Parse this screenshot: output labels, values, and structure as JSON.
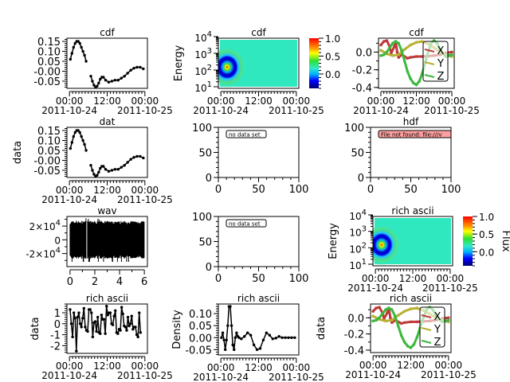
{
  "chart_data": [
    {
      "type": "line",
      "title": "cdf",
      "ylabel": "",
      "xaxis": "time",
      "xticks": [
        {
          "t": "00:00",
          "d": "2011-10-24",
          "v": 0
        },
        {
          "t": "12:00",
          "d": "",
          "v": 12
        },
        {
          "t": "00:00",
          "d": "2011-10-25",
          "v": 24
        }
      ],
      "yticks": [
        0.15,
        0.1,
        0.05,
        -0.0,
        -0.05
      ],
      "ytick_labels": [
        "0.15",
        "0.10",
        "0.05",
        "-0.00",
        "-0.05"
      ],
      "ylim": [
        -0.086,
        0.166
      ],
      "series": [
        {
          "color": "#000000",
          "x": [
            0.3,
            0.8,
            1.3,
            1.8,
            2.3,
            2.8,
            3.3,
            3.8,
            4.3,
            4.8,
            5.3,
            null,
            6.8,
            7.3,
            7.8,
            8.3,
            8.8,
            9.3,
            9.8,
            10.3,
            10.8,
            11.5,
            12.5,
            13.5,
            14.5,
            15.5,
            16.5,
            17.5,
            18.5,
            19.5,
            20.5,
            21.5,
            22.5,
            23.5
          ],
          "y": [
            0.06,
            0.09,
            0.12,
            0.14,
            0.15,
            0.15,
            0.14,
            0.12,
            0.1,
            0.08,
            0.05,
            null,
            -0.025,
            -0.05,
            -0.07,
            -0.08,
            -0.075,
            -0.06,
            -0.04,
            -0.03,
            -0.03,
            -0.045,
            -0.055,
            -0.05,
            -0.045,
            -0.045,
            -0.035,
            -0.025,
            -0.01,
            0.005,
            0.015,
            0.02,
            0.02,
            0.012
          ]
        }
      ]
    },
    {
      "type": "heatmap",
      "title": "cdf",
      "ylabel": "Energy",
      "xaxis": "time",
      "xticks": [
        {
          "t": "00:00",
          "d": "2011-10-24",
          "v": 0
        },
        {
          "t": "12:00",
          "d": "",
          "v": 12
        },
        {
          "t": "00:00",
          "d": "2011-10-25",
          "v": 24
        }
      ],
      "ylog": true,
      "ylim": [
        10,
        10000
      ],
      "yticks": [
        {
          "b": "10",
          "e": "1",
          "v": 10
        },
        {
          "b": "10",
          "e": "2",
          "v": 100
        },
        {
          "b": "10",
          "e": "3",
          "v": 1000
        },
        {
          "b": "10",
          "e": "4",
          "v": 10000
        }
      ],
      "peak": {
        "x": 2,
        "y": 150
      },
      "colorbar": {
        "labels": [
          "1.0",
          "0.5",
          "0.0"
        ],
        "values": [
          1.0,
          0.5,
          0.0
        ],
        "zlim": [
          -0.4,
          1.0
        ],
        "label": ""
      }
    },
    {
      "type": "line",
      "title": "cdf",
      "ylabel": "",
      "xaxis": "time",
      "xticks": [
        {
          "t": "00:00",
          "d": "2011-10-24",
          "v": 0
        },
        {
          "t": "12:00",
          "d": "",
          "v": 12
        },
        {
          "t": "00:00",
          "d": "2011-10-25",
          "v": 24
        }
      ],
      "yticks": [
        0.0,
        -0.2,
        -0.4
      ],
      "ytick_labels": [
        "0.0",
        "-0.2",
        "-0.4"
      ],
      "ylim": [
        -0.41,
        0.157
      ],
      "legend": {
        "placement": "right",
        "entries": [
          "X",
          "Y",
          "Z"
        ]
      },
      "series": [
        {
          "name": "X",
          "color": "#c03a3a",
          "x": [
            0,
            1,
            2,
            3,
            3.5,
            4.5,
            5,
            5.5,
            6,
            7,
            8,
            9,
            10,
            12,
            14,
            16,
            18,
            20,
            22,
            24
          ],
          "y": [
            0.08,
            0.12,
            0.13,
            0.06,
            -0.01,
            0.06,
            0.12,
            0.0,
            -0.06,
            -0.03,
            -0.05,
            -0.07,
            -0.06,
            -0.05,
            -0.05,
            -0.045,
            -0.04,
            -0.03,
            -0.01,
            0.0
          ]
        },
        {
          "name": "Y",
          "color": "#b8b032",
          "x": [
            0,
            2,
            4,
            6,
            8,
            10,
            12,
            14,
            16,
            18,
            20,
            22,
            24
          ],
          "y": [
            0.02,
            -0.02,
            -0.04,
            -0.03,
            0.03,
            0.08,
            0.11,
            0.12,
            0.09,
            0.05,
            0.0,
            -0.03,
            -0.05
          ]
        },
        {
          "name": "Z",
          "color": "#3cb83c",
          "x": [
            0,
            1,
            2,
            3,
            4,
            5,
            6,
            7,
            8,
            9,
            10,
            11,
            12,
            13,
            14,
            15,
            16,
            17,
            18,
            19,
            20,
            21,
            22,
            23,
            24
          ],
          "y": [
            -0.04,
            -0.03,
            0.0,
            0.05,
            0.1,
            0.12,
            0.1,
            0.02,
            -0.1,
            -0.22,
            -0.3,
            -0.35,
            -0.37,
            -0.33,
            -0.24,
            -0.12,
            0.0,
            0.1,
            0.13,
            0.1,
            0.03,
            -0.02,
            -0.05,
            -0.04,
            -0.03
          ]
        }
      ]
    },
    {
      "type": "line",
      "title": "dat",
      "ylabel": "data",
      "xaxis": "time",
      "xticks": [
        {
          "t": "00:00",
          "d": "2011-10-24",
          "v": 0
        },
        {
          "t": "12:00",
          "d": "",
          "v": 12
        },
        {
          "t": "00:00",
          "d": "2011-10-25",
          "v": 24
        }
      ],
      "yticks": [
        0.15,
        0.1,
        0.05,
        -0.0,
        -0.05
      ],
      "ytick_labels": [
        "0.15",
        "0.10",
        "0.05",
        "-0.00",
        "-0.05"
      ],
      "ylim": [
        -0.086,
        0.166
      ],
      "series": [
        {
          "color": "#000000",
          "x": [
            0.3,
            0.8,
            1.3,
            1.8,
            2.3,
            2.8,
            3.3,
            3.8,
            4.3,
            4.8,
            5.3,
            null,
            6.8,
            7.3,
            7.8,
            8.3,
            8.8,
            9.3,
            9.8,
            10.3,
            10.8,
            11.5,
            12.5,
            13.5,
            14.5,
            15.5,
            16.5,
            17.5,
            18.5,
            19.5,
            20.5,
            21.5,
            22.5,
            23.5
          ],
          "y": [
            0.06,
            0.09,
            0.12,
            0.14,
            0.15,
            0.15,
            0.14,
            0.12,
            0.1,
            0.08,
            0.05,
            null,
            -0.025,
            -0.05,
            -0.07,
            -0.08,
            -0.075,
            -0.06,
            -0.04,
            -0.03,
            -0.03,
            -0.045,
            -0.055,
            -0.05,
            -0.045,
            -0.045,
            -0.035,
            -0.025,
            -0.01,
            0.005,
            0.015,
            0.02,
            0.02,
            0.012
          ]
        }
      ]
    },
    {
      "type": "empty",
      "title": "",
      "xlim": [
        0,
        100
      ],
      "ylim": [
        0,
        100
      ],
      "xticks": [
        0,
        50,
        100
      ],
      "yticks": [
        0,
        50,
        100
      ],
      "message": "no data set",
      "message_style": "plain"
    },
    {
      "type": "empty",
      "title": "hdf",
      "xlim": [
        0,
        100
      ],
      "ylim": [
        0,
        100
      ],
      "xticks": [
        0,
        50,
        100
      ],
      "yticks": [
        0,
        50,
        100
      ],
      "message": "File not found: file:///v",
      "message_style": "error"
    },
    {
      "type": "waveform",
      "title": "wav",
      "ylabel": "",
      "xlim": [
        -0.25,
        6.25
      ],
      "xticks": [
        0,
        2,
        4,
        6
      ],
      "ylim": [
        -39000,
        34000
      ],
      "yticks": [
        {
          "b": "2×10",
          "e": "4",
          "v": 20000
        },
        {
          "b": "0",
          "e": "",
          "v": 0
        },
        {
          "b": "-2×10",
          "e": "4",
          "v": -20000
        }
      ],
      "amplitude": 25000,
      "peak_amplitude": 32000,
      "gap": [
        1.3,
        1.4
      ]
    },
    {
      "type": "empty",
      "title": "",
      "xlim": [
        0,
        100
      ],
      "ylim": [
        0,
        100
      ],
      "xticks": [
        0,
        50,
        100
      ],
      "yticks": [
        0,
        50,
        100
      ],
      "message": "no data set",
      "message_style": "plain"
    },
    {
      "type": "heatmap",
      "title": "rich ascii",
      "ylabel": "Energy",
      "xaxis": "time",
      "xticks": [
        {
          "t": "00:00",
          "d": "2011-10-24",
          "v": 0
        },
        {
          "t": "12:00",
          "d": "",
          "v": 12
        },
        {
          "t": "00:00",
          "d": "2011-10-25",
          "v": 24
        }
      ],
      "ylog": true,
      "ylim": [
        10,
        10000
      ],
      "yticks": [
        {
          "b": "10",
          "e": "1",
          "v": 10
        },
        {
          "b": "10",
          "e": "2",
          "v": 100
        },
        {
          "b": "10",
          "e": "3",
          "v": 1000
        },
        {
          "b": "10",
          "e": "4",
          "v": 10000
        }
      ],
      "peak": {
        "x": 2,
        "y": 150
      },
      "colorbar": {
        "labels": [
          "1.0",
          "0.5",
          "0.0"
        ],
        "values": [
          1.0,
          0.5,
          0.0
        ],
        "zlim": [
          -0.4,
          1.0
        ],
        "label": "Flux"
      }
    },
    {
      "type": "line",
      "title": "rich ascii",
      "ylabel": "data",
      "xaxis": "time",
      "xticks": [
        {
          "t": "00:00",
          "d": "2011-10-24",
          "v": 0
        },
        {
          "t": "12:00",
          "d": "",
          "v": 12
        },
        {
          "t": "00:00",
          "d": "2011-10-25",
          "v": 24
        }
      ],
      "yticks": [
        1,
        0,
        -1,
        -2
      ],
      "ytick_labels": [
        "1",
        "0",
        "-1",
        "-2"
      ],
      "ylim": [
        -2.7,
        1.8
      ],
      "series": [
        {
          "color": "#000000",
          "x": [
            0.2,
            0.6,
            1.0,
            1.4,
            1.8,
            2.2,
            2.6,
            3.0,
            3.4,
            3.8,
            4.2,
            4.6,
            5.0,
            5.4,
            5.8,
            6.2,
            6.6,
            7.0,
            7.4,
            7.8,
            8.2,
            8.6,
            9.0,
            9.4,
            9.8,
            10.2,
            10.6,
            11.0,
            11.4,
            11.8,
            12.2,
            12.6,
            13.0,
            13.4,
            13.8,
            14.2,
            14.6,
            15.0,
            15.4,
            15.8,
            16.2,
            16.6,
            17.0,
            17.4,
            17.8,
            18.2,
            18.6,
            19.0,
            19.4,
            19.8,
            20.2,
            20.6,
            21.0,
            21.4,
            21.8,
            22.2,
            22.6
          ],
          "y": [
            1.3,
            0,
            -1.2,
            1.0,
            0.5,
            -2.5,
            0.6,
            1.0,
            0,
            -0.3,
            0.5,
            1.4,
            -0.3,
            -0.6,
            -0.7,
            1.3,
            1.3,
            1.0,
            -1.2,
            0.1,
            0.2,
            -0.7,
            0.6,
            -0.8,
            -0.9,
            0.8,
            0.4,
            0.4,
            -0.9,
            1.6,
            0.8,
            1.0,
            1.0,
            0,
            -0.1,
            0.7,
            1.2,
            -0.8,
            -0.9,
            -0.5,
            -0.6,
            1.5,
            0.9,
            -0.2,
            -0.3,
            -0.6,
            0.6,
            -0.2,
            0,
            0.7,
            -0.5,
            -0.3,
            -0.3,
            -1.0,
            -1.2,
            1.0,
            -0.8
          ]
        }
      ]
    },
    {
      "type": "line",
      "title": "rich ascii",
      "ylabel": "Density",
      "xaxis": "time",
      "xticks": [
        {
          "t": "00:00",
          "d": "2011-10-24",
          "v": 0
        },
        {
          "t": "12:00",
          "d": "",
          "v": 12
        },
        {
          "t": "00:00",
          "d": "2011-10-25",
          "v": 24
        }
      ],
      "yticks": [
        0.1,
        0.05,
        0.0,
        -0.05
      ],
      "ytick_labels": [
        "0.10",
        "0.05",
        "0.00",
        "-0.05"
      ],
      "ylim": [
        -0.072,
        0.14
      ],
      "series": [
        {
          "color": "#000000",
          "x": [
            0.2,
            0.6,
            1.0,
            1.4,
            1.8,
            2.2,
            2.6,
            3.0,
            3.4,
            3.8,
            4.2,
            4.6,
            5.0,
            5.4,
            5.8,
            6.5,
            7.5,
            8.5,
            9.5,
            10.5,
            11.5,
            12.5,
            13.5,
            14.5,
            15.5,
            16.5,
            17.5,
            18.5,
            19.5,
            20.5,
            21.5,
            22.5,
            23.5
          ],
          "y": [
            0.0,
            0.02,
            -0.01,
            -0.05,
            -0.01,
            0.05,
            0.13,
            0.13,
            0.05,
            -0.03,
            -0.05,
            0.0,
            0.02,
            0.005,
            0.0,
            -0.005,
            0.005,
            0.02,
            0.01,
            -0.03,
            -0.05,
            -0.045,
            -0.01,
            0.02,
            0.01,
            -0.005,
            -0.002,
            0.005,
            0.0,
            0.0,
            0.0,
            0.0,
            0.0
          ]
        }
      ]
    },
    {
      "type": "line",
      "title": "rich ascii",
      "ylabel": "data",
      "xaxis": "time",
      "xticks": [
        {
          "t": "00:00",
          "d": "2011-10-24",
          "v": 0
        },
        {
          "t": "12:00",
          "d": "",
          "v": 12
        },
        {
          "t": "00:00",
          "d": "2011-10-25",
          "v": 24
        }
      ],
      "yticks": [
        0.0,
        -0.2,
        -0.4
      ],
      "ytick_labels": [
        "0.0",
        "-0.2",
        "-0.4"
      ],
      "ylim": [
        -0.43,
        0.17
      ],
      "legend": {
        "placement": "right",
        "entries": [
          "X",
          "Y",
          "Z"
        ]
      },
      "series": [
        {
          "name": "X",
          "color": "#c03a3a",
          "x": [
            0,
            1,
            2,
            3,
            3.5,
            4.5,
            5,
            5.5,
            6,
            7,
            8,
            9,
            10,
            12,
            14,
            16,
            18,
            20,
            22,
            24
          ],
          "y": [
            0.08,
            0.12,
            0.13,
            0.06,
            -0.01,
            0.06,
            0.12,
            0.0,
            -0.06,
            -0.03,
            -0.05,
            -0.07,
            -0.06,
            -0.05,
            -0.05,
            -0.045,
            -0.04,
            -0.03,
            -0.01,
            0.0
          ]
        },
        {
          "name": "Y",
          "color": "#b8b032",
          "x": [
            0,
            2,
            4,
            6,
            8,
            10,
            12,
            14,
            16,
            18,
            20,
            22,
            24
          ],
          "y": [
            0.02,
            -0.02,
            -0.04,
            -0.03,
            0.03,
            0.08,
            0.11,
            0.12,
            0.09,
            0.05,
            0.0,
            -0.03,
            -0.05
          ]
        },
        {
          "name": "Z",
          "color": "#3cb83c",
          "x": [
            0,
            1,
            2,
            3,
            4,
            5,
            6,
            7,
            8,
            9,
            10,
            11,
            12,
            13,
            14,
            15,
            16,
            17,
            18,
            19,
            20,
            21,
            22,
            23,
            24
          ],
          "y": [
            -0.04,
            -0.03,
            0.0,
            0.05,
            0.1,
            0.12,
            0.1,
            0.02,
            -0.1,
            -0.22,
            -0.3,
            -0.35,
            -0.37,
            -0.33,
            -0.24,
            -0.12,
            0.0,
            0.1,
            0.13,
            0.1,
            0.03,
            -0.02,
            -0.05,
            -0.04,
            -0.03
          ]
        }
      ]
    }
  ]
}
